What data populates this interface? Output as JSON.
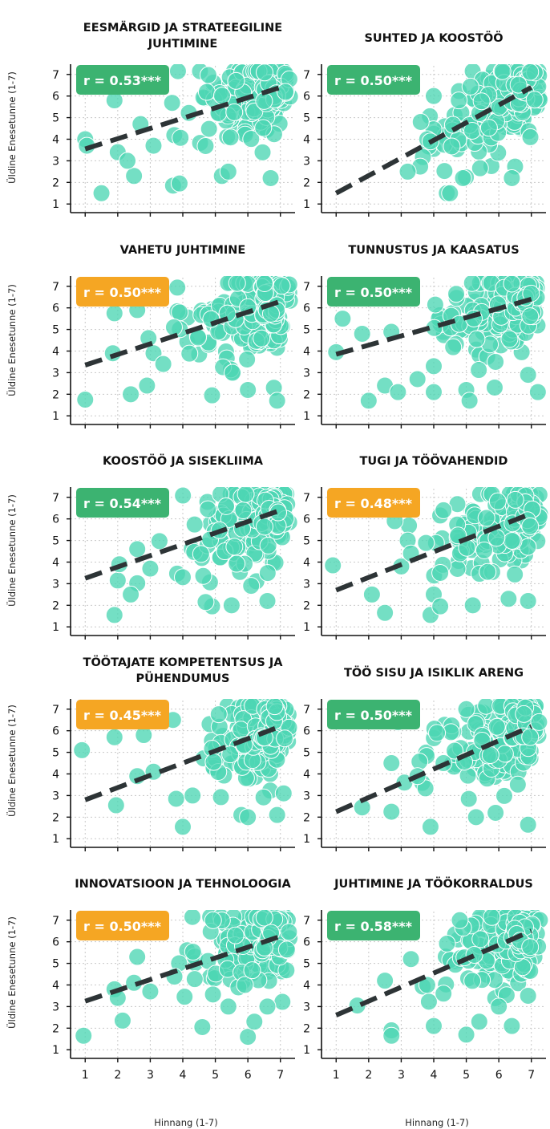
{
  "colors": {
    "point": "#4dd6b4",
    "point_edge": "#ffffff",
    "trend": "#2d3436",
    "badge_green": "#3cb371",
    "badge_orange": "#f5a623",
    "grid": "#c8c8c8",
    "axis": "#111111"
  },
  "axis_labels": {
    "y": "Üldine Enesetunne (1-7)",
    "x": "Hinnang (1-7)"
  },
  "chart_data": [
    {
      "type": "scatter",
      "title": [
        "EESMÄRGID JA STRATEEGILINE",
        "JUHTIMINE"
      ],
      "r_label": "r = 0.53***",
      "badge": "green",
      "trend": [
        [
          1,
          3.55
        ],
        [
          7,
          6.4
        ]
      ],
      "xlim": [
        0.55,
        7.45
      ],
      "ylim": [
        0.6,
        7.4
      ],
      "xticks": [
        1,
        2,
        3,
        4,
        5,
        6,
        7
      ],
      "yticks": [
        1,
        2,
        3,
        4,
        5,
        6,
        7
      ],
      "grid": true,
      "outliers": [
        [
          1.5,
          1.5
        ],
        [
          1.9,
          5.8
        ],
        [
          2.5,
          2.3
        ],
        [
          2.0,
          3.4
        ],
        [
          1.0,
          4.0
        ],
        [
          1.05,
          3.7
        ],
        [
          2.3,
          3.0
        ],
        [
          2.7,
          4.7
        ],
        [
          3.1,
          3.7
        ],
        [
          3.7,
          1.85
        ],
        [
          3.9,
          1.95
        ],
        [
          6.7,
          2.2
        ],
        [
          5.2,
          2.3
        ],
        [
          5.4,
          2.5
        ]
      ]
    },
    {
      "type": "scatter",
      "title": [
        "SUHTED JA KOOSTÖÖ"
      ],
      "r_label": "r = 0.50***",
      "badge": "green",
      "trend": [
        [
          1,
          1.5
        ],
        [
          7,
          6.4
        ]
      ],
      "xlim": [
        0.55,
        7.45
      ],
      "ylim": [
        0.6,
        7.4
      ],
      "xticks": [
        1,
        2,
        3,
        4,
        5,
        6,
        7
      ],
      "yticks": [
        1,
        2,
        3,
        4,
        5,
        6,
        7
      ],
      "grid": true,
      "outliers": [
        [
          3.2,
          2.5
        ],
        [
          4.4,
          1.5
        ],
        [
          4.5,
          1.5
        ],
        [
          3.6,
          4.8
        ],
        [
          3.8,
          4.0
        ],
        [
          4.0,
          6.0
        ],
        [
          3.9,
          3.9
        ],
        [
          4.9,
          2.2
        ],
        [
          6.4,
          2.2
        ]
      ]
    },
    {
      "type": "scatter",
      "title": [
        "VAHETU JUHTIMINE"
      ],
      "r_label": "r = 0.50***",
      "badge": "orange",
      "trend": [
        [
          1,
          3.35
        ],
        [
          7,
          6.3
        ]
      ],
      "xlim": [
        0.55,
        7.45
      ],
      "ylim": [
        0.6,
        7.4
      ],
      "xticks": [
        1,
        2,
        3,
        4,
        5,
        6,
        7
      ],
      "yticks": [
        1,
        2,
        3,
        4,
        5,
        6,
        7
      ],
      "grid": true,
      "outliers": [
        [
          1.0,
          1.75
        ],
        [
          1.9,
          5.75
        ],
        [
          1.85,
          3.9
        ],
        [
          2.4,
          2.0
        ],
        [
          2.6,
          5.9
        ],
        [
          2.9,
          2.4
        ],
        [
          3.1,
          3.9
        ],
        [
          3.4,
          3.4
        ],
        [
          4.9,
          1.95
        ],
        [
          6.0,
          2.2
        ],
        [
          6.8,
          2.3
        ],
        [
          6.9,
          1.7
        ],
        [
          2.9,
          6.7
        ]
      ]
    },
    {
      "type": "scatter",
      "title": [
        "TUNNUSTUS JA KAASATUS"
      ],
      "r_label": "r = 0.50***",
      "badge": "green",
      "trend": [
        [
          1,
          3.85
        ],
        [
          7,
          6.4
        ]
      ],
      "xlim": [
        0.55,
        7.45
      ],
      "ylim": [
        0.6,
        7.4
      ],
      "xticks": [
        1,
        2,
        3,
        4,
        5,
        6,
        7
      ],
      "yticks": [
        1,
        2,
        3,
        4,
        5,
        6,
        7
      ],
      "grid": true,
      "outliers": [
        [
          1.0,
          3.95
        ],
        [
          1.8,
          4.8
        ],
        [
          2.0,
          1.7
        ],
        [
          2.5,
          2.4
        ],
        [
          2.9,
          2.1
        ],
        [
          3.5,
          2.7
        ],
        [
          4.0,
          3.3
        ],
        [
          4.0,
          2.1
        ],
        [
          5.0,
          2.2
        ],
        [
          5.1,
          1.7
        ],
        [
          5.9,
          3.5
        ],
        [
          6.9,
          2.9
        ],
        [
          7.2,
          2.1
        ],
        [
          1.2,
          5.5
        ]
      ]
    },
    {
      "type": "scatter",
      "title": [
        "KOOSTÖÖ JA SISEKLIIMA"
      ],
      "r_label": "r = 0.54***",
      "badge": "green",
      "trend": [
        [
          1,
          3.25
        ],
        [
          7,
          6.4
        ]
      ],
      "xlim": [
        0.55,
        7.45
      ],
      "ylim": [
        0.6,
        7.4
      ],
      "xticks": [
        1,
        2,
        3,
        4,
        5,
        6,
        7
      ],
      "yticks": [
        1,
        2,
        3,
        4,
        5,
        6,
        7
      ],
      "grid": true,
      "outliers": [
        [
          1.9,
          1.55
        ],
        [
          2.4,
          2.5
        ],
        [
          2.0,
          3.15
        ],
        [
          2.05,
          3.9
        ],
        [
          3.0,
          3.7
        ],
        [
          4.0,
          3.3
        ],
        [
          4.9,
          1.95
        ],
        [
          4.7,
          2.15
        ],
        [
          5.5,
          2.0
        ],
        [
          6.1,
          2.9
        ],
        [
          6.6,
          2.2
        ],
        [
          2.6,
          4.6
        ]
      ]
    },
    {
      "type": "scatter",
      "title": [
        "TUGI JA TÖÖVAHENDID"
      ],
      "r_label": "r = 0.48***",
      "badge": "orange",
      "trend": [
        [
          1,
          2.7
        ],
        [
          7,
          6.25
        ]
      ],
      "xlim": [
        0.55,
        7.45
      ],
      "ylim": [
        0.6,
        7.4
      ],
      "xticks": [
        1,
        2,
        3,
        4,
        5,
        6,
        7
      ],
      "yticks": [
        1,
        2,
        3,
        4,
        5,
        6,
        7
      ],
      "grid": true,
      "outliers": [
        [
          0.9,
          3.85
        ],
        [
          2.1,
          2.5
        ],
        [
          2.5,
          1.65
        ],
        [
          3.0,
          3.8
        ],
        [
          3.2,
          5.0
        ],
        [
          3.3,
          4.4
        ],
        [
          4.2,
          3.5
        ],
        [
          4.0,
          2.5
        ],
        [
          3.9,
          1.55
        ],
        [
          4.2,
          1.95
        ],
        [
          5.2,
          2.0
        ],
        [
          6.3,
          2.3
        ],
        [
          6.9,
          2.2
        ],
        [
          4.3,
          6.4
        ],
        [
          2.8,
          5.9
        ]
      ]
    },
    {
      "type": "scatter",
      "title": [
        "TÖÖTAJATE KOMPETENTSUS JA",
        "PÜHENDUMUS"
      ],
      "r_label": "r = 0.45***",
      "badge": "orange",
      "trend": [
        [
          1,
          2.8
        ],
        [
          7,
          6.2
        ]
      ],
      "xlim": [
        0.55,
        7.45
      ],
      "ylim": [
        0.6,
        7.4
      ],
      "xticks": [
        1,
        2,
        3,
        4,
        5,
        6,
        7
      ],
      "yticks": [
        1,
        2,
        3,
        4,
        5,
        6,
        7
      ],
      "grid": true,
      "outliers": [
        [
          0.9,
          5.1
        ],
        [
          1.9,
          5.7
        ],
        [
          1.95,
          2.55
        ],
        [
          2.8,
          5.8
        ],
        [
          2.6,
          3.9
        ],
        [
          3.1,
          4.1
        ],
        [
          4.0,
          1.55
        ],
        [
          4.3,
          3.0
        ],
        [
          5.8,
          2.1
        ],
        [
          6.0,
          2.0
        ],
        [
          6.9,
          2.1
        ],
        [
          7.1,
          3.1
        ],
        [
          3.7,
          6.5
        ]
      ]
    },
    {
      "type": "scatter",
      "title": [
        "TÖÖ SISU JA ISIKLIK ARENG"
      ],
      "r_label": "r = 0.50***",
      "badge": "green",
      "trend": [
        [
          1,
          2.25
        ],
        [
          7,
          6.2
        ]
      ],
      "xlim": [
        0.55,
        7.45
      ],
      "ylim": [
        0.6,
        7.4
      ],
      "xticks": [
        1,
        2,
        3,
        4,
        5,
        6,
        7
      ],
      "yticks": [
        1,
        2,
        3,
        4,
        5,
        6,
        7
      ],
      "grid": true,
      "outliers": [
        [
          1.8,
          2.45
        ],
        [
          2.7,
          2.25
        ],
        [
          2.9,
          6.4
        ],
        [
          3.9,
          1.55
        ],
        [
          2.7,
          4.5
        ],
        [
          3.1,
          3.6
        ],
        [
          3.5,
          3.9
        ],
        [
          4.1,
          5.9
        ],
        [
          4.3,
          4.5
        ],
        [
          5.3,
          2.0
        ],
        [
          5.9,
          2.2
        ],
        [
          6.9,
          1.65
        ],
        [
          5.0,
          7.0
        ]
      ]
    },
    {
      "type": "scatter",
      "title": [
        "INNOVATSIOON JA TEHNOLOOGIA"
      ],
      "r_label": "r = 0.50***",
      "badge": "orange",
      "trend": [
        [
          1,
          3.25
        ],
        [
          7,
          6.25
        ]
      ],
      "xlim": [
        0.55,
        7.45
      ],
      "ylim": [
        0.6,
        7.4
      ],
      "xticks": [
        1,
        2,
        3,
        4,
        5,
        6,
        7
      ],
      "yticks": [
        1,
        2,
        3,
        4,
        5,
        6,
        7
      ],
      "grid": true,
      "outliers": [
        [
          0.95,
          1.65
        ],
        [
          1.9,
          3.8
        ],
        [
          2.15,
          2.35
        ],
        [
          2.0,
          3.4
        ],
        [
          2.5,
          4.1
        ],
        [
          2.6,
          5.3
        ],
        [
          3.0,
          3.7
        ],
        [
          4.6,
          2.05
        ],
        [
          5.4,
          3.0
        ],
        [
          6.0,
          1.6
        ],
        [
          6.2,
          2.3
        ],
        [
          6.6,
          3.0
        ],
        [
          3.1,
          6.8
        ]
      ]
    },
    {
      "type": "scatter",
      "title": [
        "JUHTIMINE JA TÖÖKORRALDUS"
      ],
      "r_label": "r = 0.58***",
      "badge": "green",
      "trend": [
        [
          1,
          2.6
        ],
        [
          7,
          6.5
        ]
      ],
      "xlim": [
        0.55,
        7.45
      ],
      "ylim": [
        0.6,
        7.4
      ],
      "xticks": [
        1,
        2,
        3,
        4,
        5,
        6,
        7
      ],
      "yticks": [
        1,
        2,
        3,
        4,
        5,
        6,
        7
      ],
      "grid": true,
      "outliers": [
        [
          1.65,
          3.05
        ],
        [
          2.5,
          4.2
        ],
        [
          2.7,
          1.9
        ],
        [
          2.7,
          1.65
        ],
        [
          3.3,
          5.2
        ],
        [
          3.8,
          4.0
        ],
        [
          4.0,
          2.1
        ],
        [
          4.3,
          3.6
        ],
        [
          5.0,
          1.7
        ],
        [
          5.4,
          2.3
        ],
        [
          6.4,
          2.1
        ],
        [
          6.0,
          3.0
        ],
        [
          4.8,
          7.0
        ],
        [
          6.9,
          3.5
        ]
      ]
    }
  ]
}
